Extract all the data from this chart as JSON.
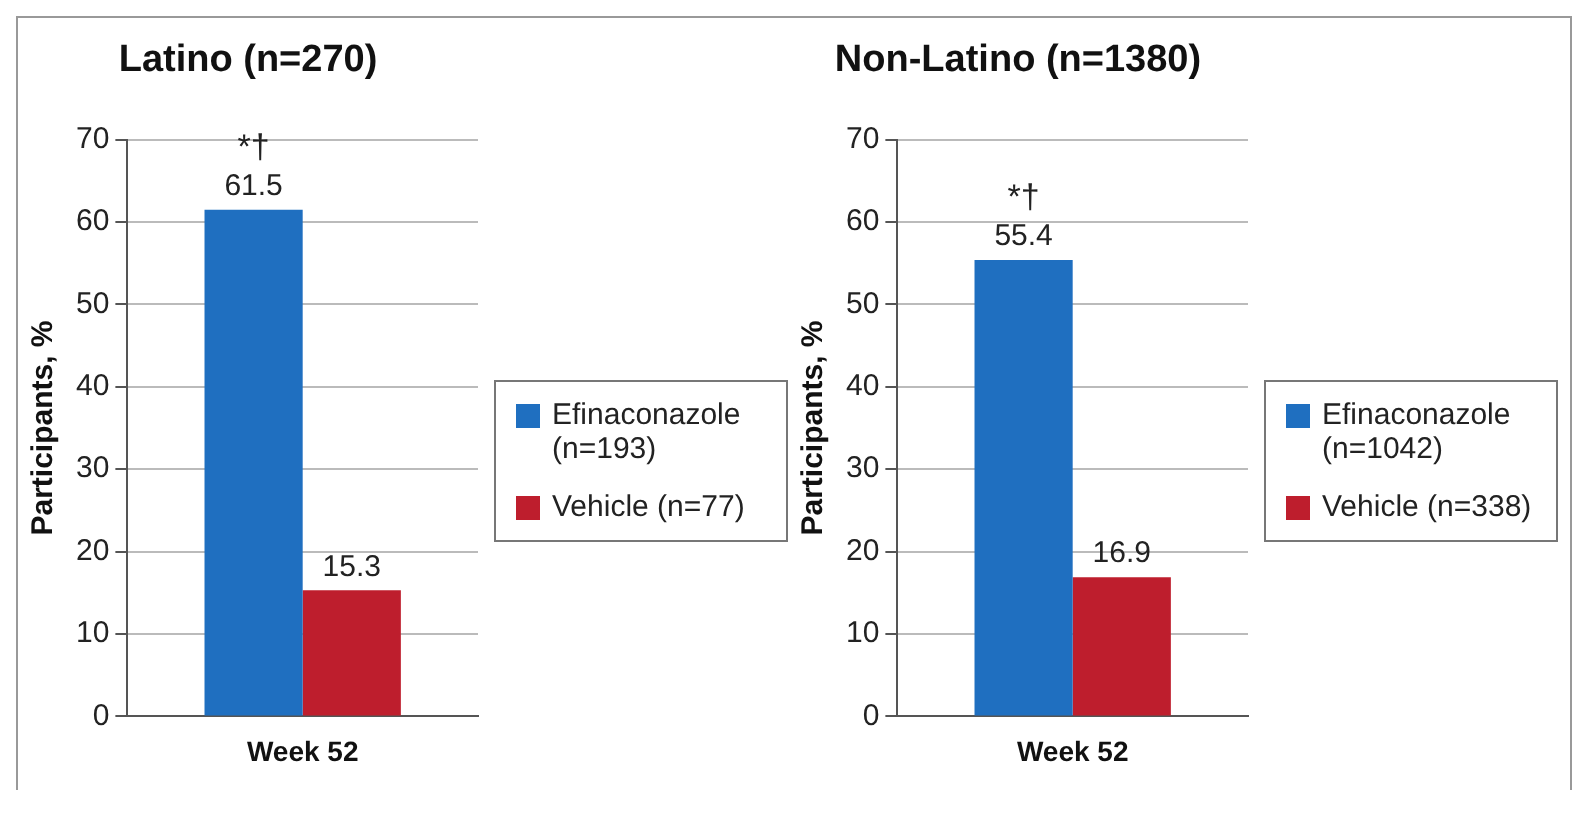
{
  "chart_data": [
    {
      "type": "bar",
      "title": "Latino (n=270)",
      "ylabel": "Participants, %",
      "categories": [
        "Week 52"
      ],
      "series": [
        {
          "name": "Efinaconazole (n=193)",
          "color": "#1f6fc0",
          "values": [
            61.5
          ]
        },
        {
          "name": "Vehicle (n=77)",
          "color": "#be1e2d",
          "values": [
            15.3
          ]
        }
      ],
      "ylim": [
        0,
        70
      ],
      "yticks": [
        0,
        10,
        20,
        30,
        40,
        50,
        60,
        70
      ],
      "grid": "y",
      "legend": "right",
      "data_labels": true,
      "annotations": [
        "*†"
      ]
    },
    {
      "type": "bar",
      "title": "Non-Latino (n=1380)",
      "ylabel": "Participants, %",
      "categories": [
        "Week 52"
      ],
      "series": [
        {
          "name": "Efinaconazole (n=1042)",
          "color": "#1f6fc0",
          "values": [
            55.4
          ]
        },
        {
          "name": "Vehicle (n=338)",
          "color": "#be1e2d",
          "values": [
            16.9
          ]
        }
      ],
      "ylim": [
        0,
        70
      ],
      "yticks": [
        0,
        10,
        20,
        30,
        40,
        50,
        60,
        70
      ],
      "grid": "y",
      "legend": "right",
      "data_labels": true,
      "annotations": [
        "*†"
      ]
    }
  ]
}
